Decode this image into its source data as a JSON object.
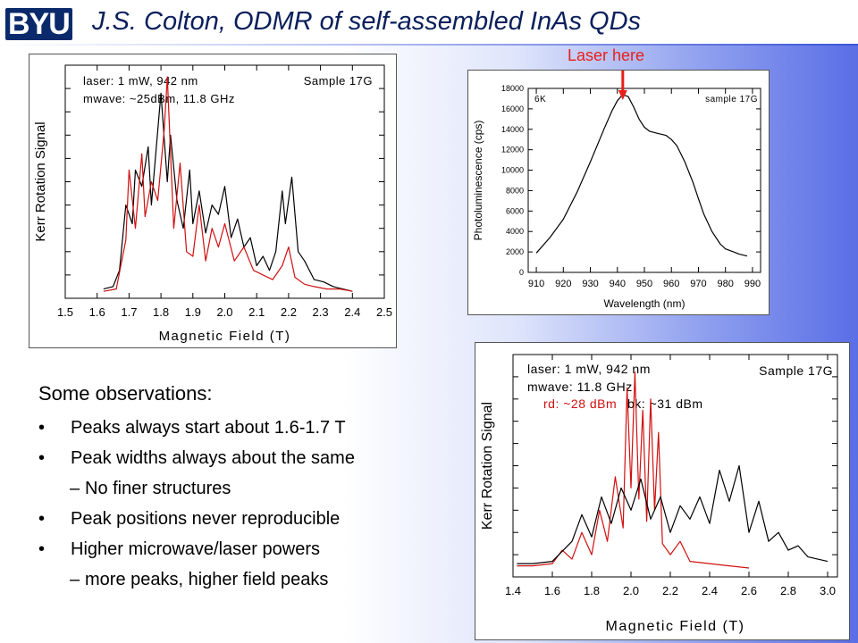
{
  "header": {
    "logo_text": "BYU",
    "title": "J.S. Colton, ODMR of self-assembled InAs QDs"
  },
  "laser_note": "Laser here",
  "observations": {
    "heading": "Some observations:",
    "items": [
      {
        "level": 1,
        "text": "Peaks always start about 1.6-1.7 T"
      },
      {
        "level": 1,
        "text": "Peak widths always about the same"
      },
      {
        "level": 2,
        "text": "No finer structures"
      },
      {
        "level": 1,
        "text": "Peak positions never reproducible"
      },
      {
        "level": 1,
        "text": "Higher microwave/laser powers"
      },
      {
        "level": 2,
        "text": "more peaks, higher field peaks"
      }
    ]
  },
  "colors": {
    "red_trace": "#d01010",
    "black_trace": "#000000",
    "accent": "#e8201a",
    "title": "#0a1f5c"
  },
  "chart_data": [
    {
      "type": "line",
      "xlabel": "Magnetic Field (T)",
      "ylabel": "Kerr Rotation Signal",
      "annotations": [
        "laser: 1 mW, 942 nm",
        "mwave: ~25dBm, 11.8 GHz",
        "Sample 17G"
      ],
      "x_ticks": [
        "1.5",
        "1.6",
        "1.7",
        "1.8",
        "1.9",
        "2.0",
        "2.1",
        "2.2",
        "2.3",
        "2.4",
        "2.5"
      ],
      "xlim": [
        1.5,
        2.5
      ],
      "ylim": [
        0,
        10
      ],
      "series": [
        {
          "color": "black",
          "x": [
            1.62,
            1.65,
            1.67,
            1.69,
            1.71,
            1.72,
            1.74,
            1.76,
            1.77,
            1.79,
            1.8,
            1.82,
            1.83,
            1.85,
            1.87,
            1.89,
            1.9,
            1.92,
            1.94,
            1.96,
            1.98,
            2.0,
            2.02,
            2.04,
            2.06,
            2.08,
            2.1,
            2.12,
            2.14,
            2.16,
            2.18,
            2.19,
            2.21,
            2.23,
            2.25,
            2.28,
            2.31,
            2.34,
            2.37,
            2.4
          ],
          "y": [
            0.4,
            0.5,
            1.2,
            4.0,
            3.2,
            5.5,
            4.8,
            6.5,
            4.0,
            7.2,
            8.8,
            5.0,
            7.0,
            4.2,
            3.0,
            5.5,
            3.2,
            4.6,
            2.8,
            4.0,
            3.6,
            4.8,
            2.6,
            3.4,
            2.2,
            2.6,
            1.4,
            1.8,
            1.2,
            2.0,
            4.6,
            3.2,
            5.2,
            2.0,
            1.6,
            0.8,
            0.7,
            0.5,
            0.4,
            0.3
          ]
        },
        {
          "color": "red",
          "x": [
            1.62,
            1.66,
            1.69,
            1.7,
            1.72,
            1.74,
            1.75,
            1.77,
            1.79,
            1.81,
            1.82,
            1.84,
            1.86,
            1.88,
            1.9,
            1.92,
            1.94,
            1.96,
            1.98,
            2.0,
            2.03,
            2.06,
            2.09,
            2.12,
            2.15,
            2.18,
            2.2,
            2.22,
            2.25,
            2.28,
            2.32,
            2.36,
            2.4
          ],
          "y": [
            0.3,
            0.4,
            2.5,
            5.5,
            3.0,
            6.2,
            3.5,
            5.0,
            4.2,
            7.2,
            9.5,
            3.0,
            5.8,
            2.0,
            1.8,
            4.0,
            1.6,
            3.0,
            2.2,
            3.2,
            1.6,
            2.2,
            1.2,
            1.0,
            0.8,
            1.4,
            2.2,
            0.9,
            0.6,
            0.5,
            0.4,
            0.4,
            0.3
          ]
        }
      ]
    },
    {
      "type": "line",
      "xlabel": "Wavelength (nm)",
      "ylabel": "Photoluminescence (cps)",
      "annotations": [
        "6K",
        "sample 17G"
      ],
      "x_ticks": [
        "910",
        "920",
        "930",
        "940",
        "950",
        "960",
        "970",
        "980",
        "990"
      ],
      "y_ticks": [
        "0",
        "2000",
        "4000",
        "6000",
        "8000",
        "10000",
        "12000",
        "14000",
        "16000",
        "18000"
      ],
      "xlim": [
        907,
        993
      ],
      "ylim": [
        0,
        18000
      ],
      "series": [
        {
          "color": "black",
          "x": [
            910,
            915,
            920,
            925,
            930,
            935,
            938,
            940,
            942,
            944,
            946,
            948,
            950,
            952,
            955,
            958,
            960,
            962,
            965,
            968,
            970,
            972,
            975,
            978,
            980,
            983,
            985,
            988
          ],
          "y": [
            1900,
            3400,
            5200,
            7800,
            10800,
            14000,
            15800,
            16800,
            17400,
            17200,
            16200,
            15000,
            14200,
            13800,
            13600,
            13400,
            13000,
            12400,
            10800,
            8800,
            7200,
            5700,
            4000,
            2800,
            2300,
            2000,
            1800,
            1600
          ]
        }
      ]
    },
    {
      "type": "line",
      "xlabel": "Magnetic Field (T)",
      "ylabel": "Kerr Rotation Signal",
      "annotations": [
        "laser: 1 mW, 942 nm",
        "mwave: 11.8 GHz",
        "rd: ~28 dBm",
        "bk: ~31 dBm",
        "Sample 17G"
      ],
      "x_ticks": [
        "1.4",
        "1.6",
        "1.8",
        "2.0",
        "2.2",
        "2.4",
        "2.6",
        "2.8",
        "3.0"
      ],
      "xlim": [
        1.4,
        3.05
      ],
      "ylim": [
        0,
        10
      ],
      "series": [
        {
          "color": "red",
          "name": "rd: ~28 dBm",
          "x": [
            1.42,
            1.5,
            1.6,
            1.65,
            1.7,
            1.75,
            1.8,
            1.84,
            1.88,
            1.92,
            1.96,
            1.98,
            2.0,
            2.02,
            2.04,
            2.06,
            2.08,
            2.1,
            2.12,
            2.14,
            2.16,
            2.2,
            2.25,
            2.3,
            2.4,
            2.5,
            2.6
          ],
          "y": [
            0.5,
            0.5,
            0.6,
            1.2,
            0.8,
            2.0,
            1.0,
            3.0,
            1.6,
            4.5,
            2.2,
            8.5,
            4.0,
            9.2,
            3.5,
            7.5,
            2.5,
            8.0,
            3.0,
            6.5,
            1.5,
            1.0,
            1.6,
            0.7,
            0.6,
            0.5,
            0.4
          ]
        },
        {
          "color": "black",
          "name": "bk: ~31 dBm",
          "x": [
            1.42,
            1.5,
            1.6,
            1.7,
            1.75,
            1.8,
            1.85,
            1.9,
            1.95,
            2.0,
            2.05,
            2.1,
            2.15,
            2.2,
            2.25,
            2.3,
            2.35,
            2.4,
            2.45,
            2.5,
            2.55,
            2.6,
            2.65,
            2.7,
            2.75,
            2.8,
            2.85,
            2.9,
            2.95,
            3.0
          ],
          "y": [
            0.6,
            0.6,
            0.7,
            1.6,
            2.8,
            1.8,
            3.6,
            2.4,
            4.0,
            3.0,
            4.4,
            2.6,
            3.6,
            2.0,
            3.2,
            2.6,
            3.6,
            2.4,
            4.8,
            3.4,
            5.0,
            2.0,
            3.4,
            1.6,
            2.0,
            1.2,
            1.4,
            0.9,
            0.8,
            0.7
          ]
        }
      ]
    }
  ]
}
